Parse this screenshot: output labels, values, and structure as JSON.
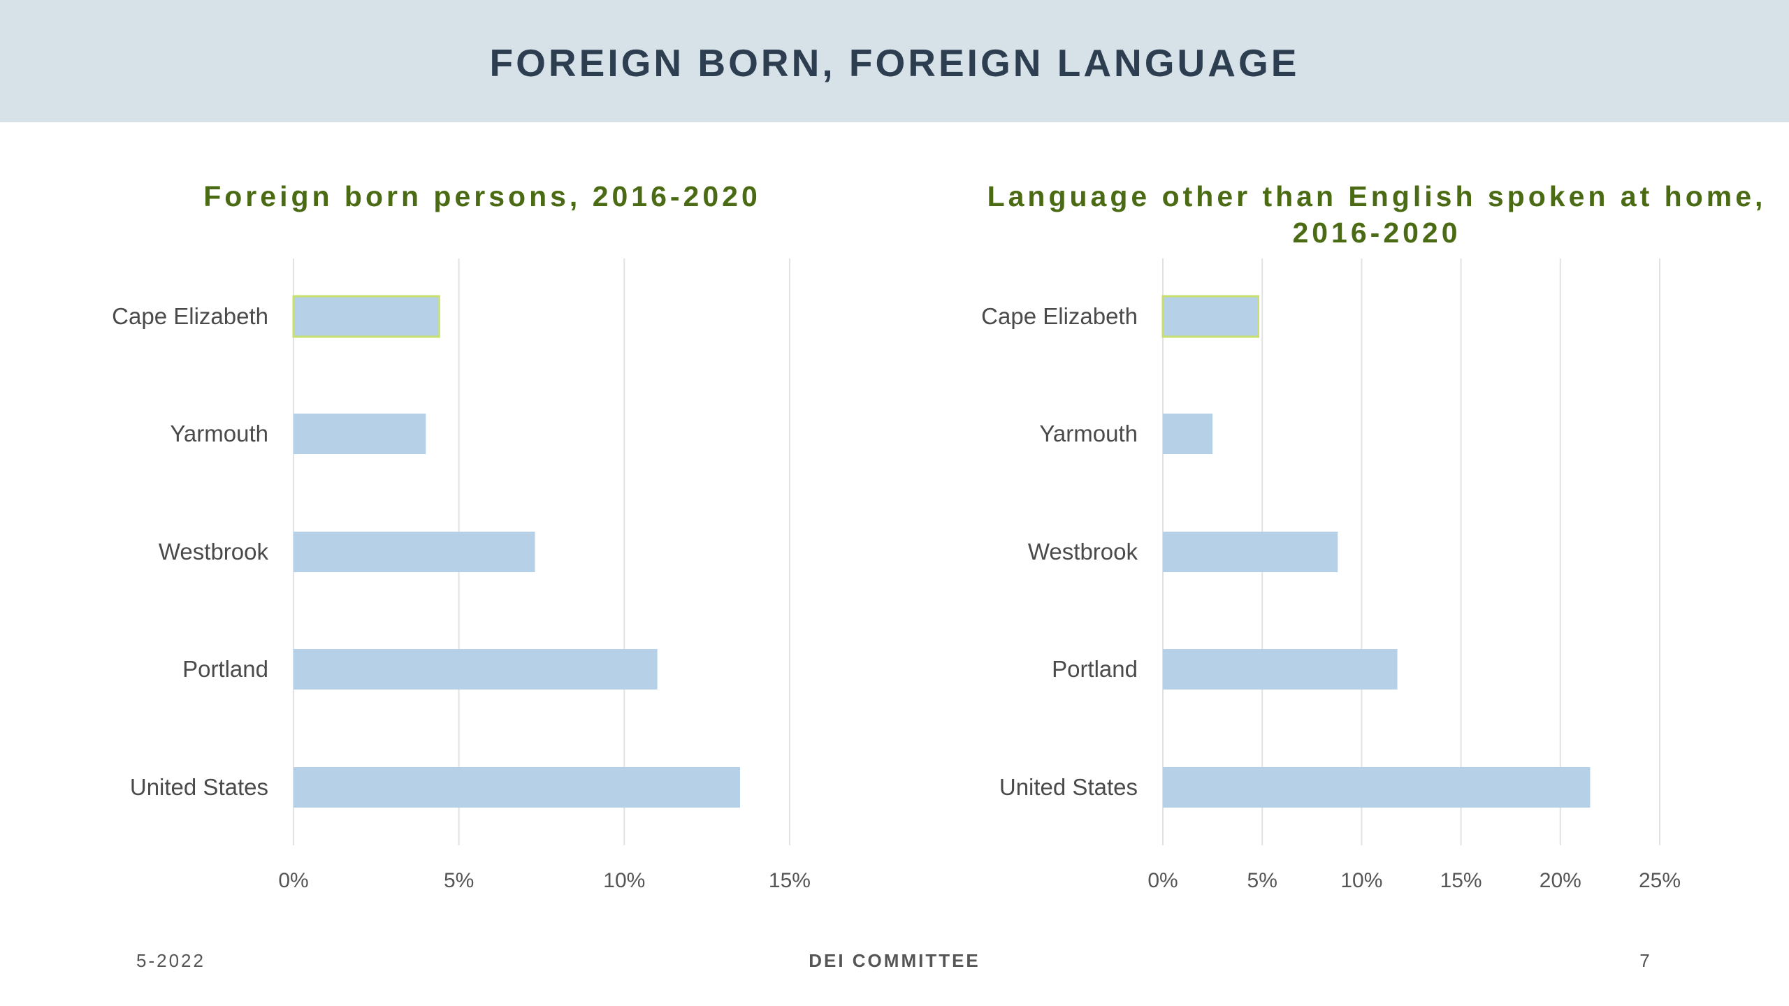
{
  "slide": {
    "title": "FOREIGN BORN, FOREIGN LANGUAGE",
    "footer_left": "5-2022",
    "footer_center": "DEI COMMITTEE",
    "page_number": "7"
  },
  "colors": {
    "header_band": "#d6e1e8",
    "bar_fill": "#b6d0e8",
    "highlight_outline": "#c7e06b",
    "chart_title": "#4a6b14",
    "slide_title": "#2c3e50",
    "gridline": "#e2e2e2"
  },
  "chart_data": [
    {
      "type": "bar",
      "orientation": "horizontal",
      "title": "Foreign born persons, 2016-2020",
      "categories": [
        "Cape Elizabeth",
        "Yarmouth",
        "Westbrook",
        "Portland",
        "United States"
      ],
      "values": [
        4.4,
        4.0,
        7.3,
        11.0,
        13.5
      ],
      "unit": "%",
      "xlim": [
        0,
        15
      ],
      "xticks": [
        "0%",
        "5%",
        "10%",
        "15%"
      ],
      "xtick_values": [
        0,
        5,
        10,
        15
      ],
      "highlighted_category": "Cape Elizabeth",
      "grid": true,
      "legend": "none"
    },
    {
      "type": "bar",
      "orientation": "horizontal",
      "title": "Language other than English spoken at home, 2016-2020",
      "categories": [
        "Cape Elizabeth",
        "Yarmouth",
        "Westbrook",
        "Portland",
        "United States"
      ],
      "values": [
        4.8,
        2.5,
        8.8,
        11.8,
        21.5
      ],
      "unit": "%",
      "xlim": [
        0,
        25
      ],
      "xticks": [
        "0%",
        "5%",
        "10%",
        "15%",
        "20%",
        "25%"
      ],
      "xtick_values": [
        0,
        5,
        10,
        15,
        20,
        25
      ],
      "highlighted_category": "Cape Elizabeth",
      "grid": true,
      "legend": "none"
    }
  ]
}
